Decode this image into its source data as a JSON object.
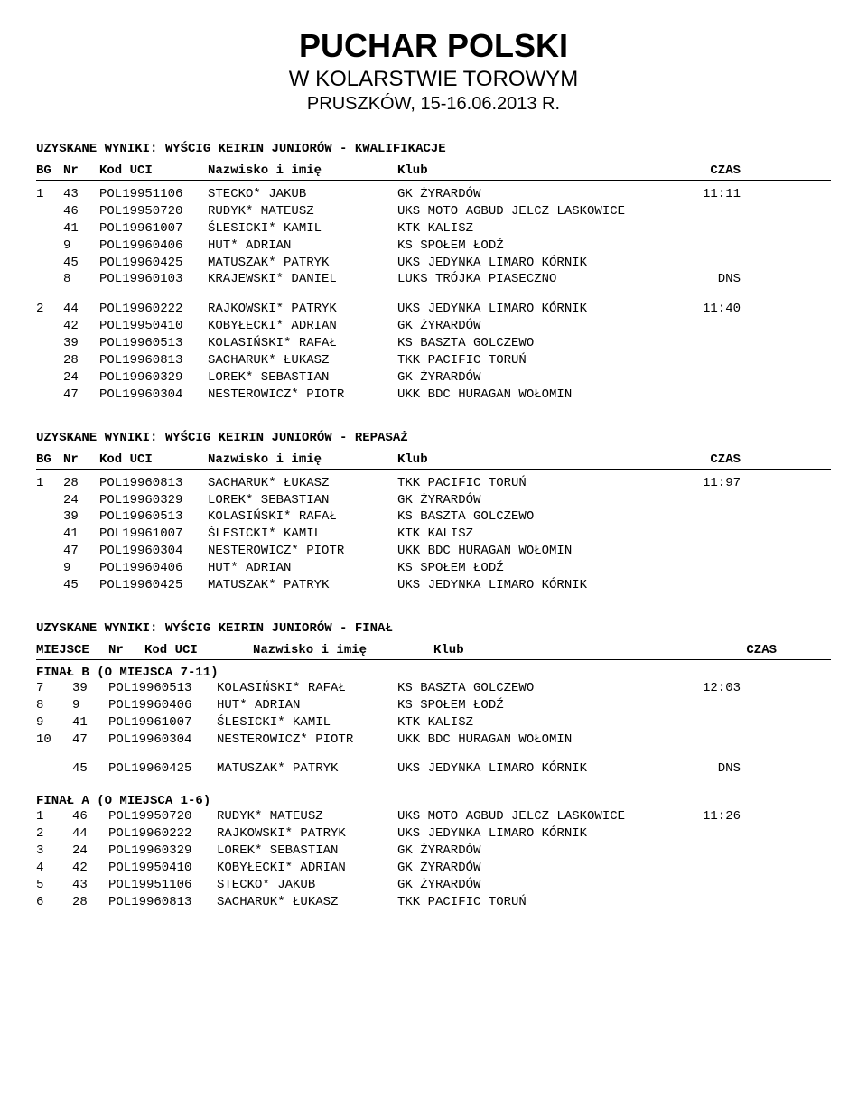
{
  "header": {
    "title": "PUCHAR POLSKI",
    "subtitle1": "W KOLARSTWIE TOROWYM",
    "subtitle2": "PRUSZKÓW, 15-16.06.2013 R."
  },
  "sections": {
    "kwalifikacje": {
      "title": "UZYSKANE WYNIKI: WYŚCIG KEIRIN JUNIORÓW - KWALIFIKACJE",
      "columns": {
        "bg": "BG",
        "nr": "Nr",
        "kod": "Kod UCI",
        "name": "Nazwisko i imię",
        "klub": "Klub",
        "czas": "CZAS"
      },
      "groups": [
        {
          "rows": [
            {
              "bg": "1",
              "nr": "43",
              "kod": "POL19951106",
              "name": "STECKO* JAKUB",
              "klub": "GK ŻYRARDÓW",
              "czas": "11:11"
            },
            {
              "bg": "",
              "nr": "46",
              "kod": "POL19950720",
              "name": "RUDYK* MATEUSZ",
              "klub": "UKS MOTO AGBUD JELCZ LASKOWICE",
              "czas": ""
            },
            {
              "bg": "",
              "nr": "41",
              "kod": "POL19961007",
              "name": "ŚLESICKI* KAMIL",
              "klub": "KTK KALISZ",
              "czas": ""
            },
            {
              "bg": "",
              "nr": "9",
              "kod": "POL19960406",
              "name": "HUT* ADRIAN",
              "klub": "KS SPOŁEM ŁODŹ",
              "czas": ""
            },
            {
              "bg": "",
              "nr": "45",
              "kod": "POL19960425",
              "name": "MATUSZAK* PATRYK",
              "klub": "UKS JEDYNKA LIMARO KÓRNIK",
              "czas": ""
            },
            {
              "bg": "",
              "nr": "8",
              "kod": "POL19960103",
              "name": "KRAJEWSKI* DANIEL",
              "klub": "LUKS TRÓJKA PIASECZNO",
              "czas": "DNS"
            }
          ]
        },
        {
          "rows": [
            {
              "bg": "2",
              "nr": "44",
              "kod": "POL19960222",
              "name": "RAJKOWSKI* PATRYK",
              "klub": "UKS JEDYNKA LIMARO KÓRNIK",
              "czas": "11:40"
            },
            {
              "bg": "",
              "nr": "42",
              "kod": "POL19950410",
              "name": "KOBYŁECKI* ADRIAN",
              "klub": "GK ŻYRARDÓW",
              "czas": ""
            },
            {
              "bg": "",
              "nr": "39",
              "kod": "POL19960513",
              "name": "KOLASIŃSKI* RAFAŁ",
              "klub": "KS BASZTA GOLCZEWO",
              "czas": ""
            },
            {
              "bg": "",
              "nr": "28",
              "kod": "POL19960813",
              "name": "SACHARUK* ŁUKASZ",
              "klub": "TKK PACIFIC TORUŃ",
              "czas": ""
            },
            {
              "bg": "",
              "nr": "24",
              "kod": "POL19960329",
              "name": "LOREK* SEBASTIAN",
              "klub": "GK ŻYRARDÓW",
              "czas": ""
            },
            {
              "bg": "",
              "nr": "47",
              "kod": "POL19960304",
              "name": "NESTEROWICZ* PIOTR",
              "klub": "UKK BDC HURAGAN WOŁOMIN",
              "czas": ""
            }
          ]
        }
      ]
    },
    "repasaz": {
      "title": "UZYSKANE WYNIKI: WYŚCIG KEIRIN JUNIORÓW - REPASAŻ",
      "columns": {
        "bg": "BG",
        "nr": "Nr",
        "kod": "Kod UCI",
        "name": "Nazwisko i imię",
        "klub": "Klub",
        "czas": "CZAS"
      },
      "groups": [
        {
          "rows": [
            {
              "bg": "1",
              "nr": "28",
              "kod": "POL19960813",
              "name": "SACHARUK* ŁUKASZ",
              "klub": "TKK PACIFIC TORUŃ",
              "czas": "11:97"
            },
            {
              "bg": "",
              "nr": "24",
              "kod": "POL19960329",
              "name": "LOREK* SEBASTIAN",
              "klub": "GK ŻYRARDÓW",
              "czas": ""
            },
            {
              "bg": "",
              "nr": "39",
              "kod": "POL19960513",
              "name": "KOLASIŃSKI* RAFAŁ",
              "klub": "KS BASZTA GOLCZEWO",
              "czas": ""
            },
            {
              "bg": "",
              "nr": "41",
              "kod": "POL19961007",
              "name": "ŚLESICKI* KAMIL",
              "klub": "KTK KALISZ",
              "czas": ""
            },
            {
              "bg": "",
              "nr": "47",
              "kod": "POL19960304",
              "name": "NESTEROWICZ* PIOTR",
              "klub": "UKK BDC HURAGAN WOŁOMIN",
              "czas": ""
            },
            {
              "bg": "",
              "nr": "9",
              "kod": "POL19960406",
              "name": "HUT* ADRIAN",
              "klub": "KS SPOŁEM ŁODŹ",
              "czas": ""
            },
            {
              "bg": "",
              "nr": "45",
              "kod": "POL19960425",
              "name": "MATUSZAK* PATRYK",
              "klub": "UKS JEDYNKA LIMARO KÓRNIK",
              "czas": ""
            }
          ]
        }
      ]
    },
    "final": {
      "title": "UZYSKANE WYNIKI: WYŚCIG KEIRIN JUNIORÓW - FINAŁ",
      "columns": {
        "miejsce": "MIEJSCE",
        "nr": "Nr",
        "kod": "Kod UCI",
        "name": "Nazwisko i imię",
        "klub": "Klub",
        "czas": "CZAS"
      },
      "subgroups": [
        {
          "label": "FINAŁ B (O MIEJSCA 7-11)",
          "rows": [
            {
              "miejsce": "7",
              "nr": "39",
              "kod": "POL19960513",
              "name": "KOLASIŃSKI* RAFAŁ",
              "klub": "KS BASZTA GOLCZEWO",
              "czas": "12:03"
            },
            {
              "miejsce": "8",
              "nr": "9",
              "kod": "POL19960406",
              "name": "HUT* ADRIAN",
              "klub": "KS SPOŁEM ŁODŹ",
              "czas": ""
            },
            {
              "miejsce": "9",
              "nr": "41",
              "kod": "POL19961007",
              "name": "ŚLESICKI* KAMIL",
              "klub": "KTK KALISZ",
              "czas": ""
            },
            {
              "miejsce": "10",
              "nr": "47",
              "kod": "POL19960304",
              "name": "NESTEROWICZ* PIOTR",
              "klub": "UKK BDC HURAGAN WOŁOMIN",
              "czas": ""
            }
          ],
          "extras": [
            {
              "miejsce": "",
              "nr": "45",
              "kod": "POL19960425",
              "name": "MATUSZAK* PATRYK",
              "klub": "UKS JEDYNKA LIMARO KÓRNIK",
              "czas": "DNS"
            }
          ]
        },
        {
          "label": "FINAŁ A (O MIEJSCA 1-6)",
          "rows": [
            {
              "miejsce": "1",
              "nr": "46",
              "kod": "POL19950720",
              "name": "RUDYK* MATEUSZ",
              "klub": "UKS MOTO AGBUD JELCZ LASKOWICE",
              "czas": "11:26"
            },
            {
              "miejsce": "2",
              "nr": "44",
              "kod": "POL19960222",
              "name": "RAJKOWSKI* PATRYK",
              "klub": "UKS JEDYNKA LIMARO KÓRNIK",
              "czas": ""
            },
            {
              "miejsce": "3",
              "nr": "24",
              "kod": "POL19960329",
              "name": "LOREK* SEBASTIAN",
              "klub": "GK ŻYRARDÓW",
              "czas": ""
            },
            {
              "miejsce": "4",
              "nr": "42",
              "kod": "POL19950410",
              "name": "KOBYŁECKI* ADRIAN",
              "klub": "GK ŻYRARDÓW",
              "czas": ""
            },
            {
              "miejsce": "5",
              "nr": "43",
              "kod": "POL19951106",
              "name": "STECKO* JAKUB",
              "klub": "GK ŻYRARDÓW",
              "czas": ""
            },
            {
              "miejsce": "6",
              "nr": "28",
              "kod": "POL19960813",
              "name": "SACHARUK* ŁUKASZ",
              "klub": "TKK PACIFIC TORUŃ",
              "czas": ""
            }
          ],
          "extras": []
        }
      ]
    }
  }
}
